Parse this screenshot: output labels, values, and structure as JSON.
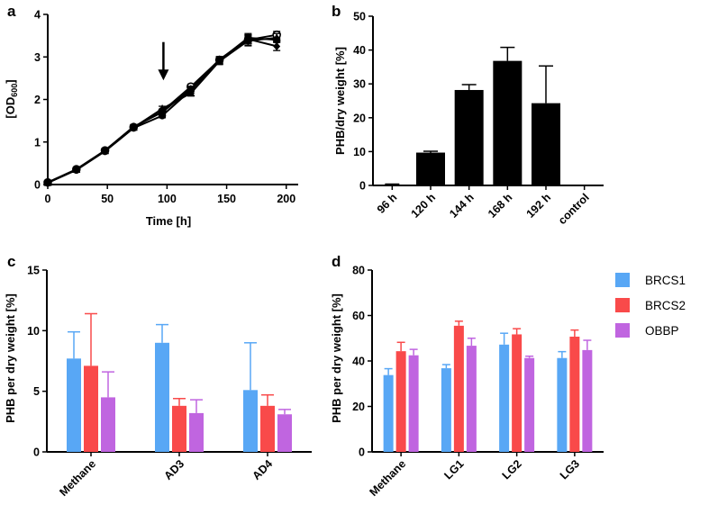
{
  "figure": {
    "palette": {
      "axis": "#000000",
      "black_bar": "#000000"
    },
    "legend": [
      {
        "label": "BRCS1",
        "color": "#58a7f5"
      },
      {
        "label": "BRCS2",
        "color": "#f94a4a"
      },
      {
        "label": "OBBP",
        "color": "#c065e0"
      }
    ]
  },
  "chart_data": [
    {
      "panel": "a",
      "type": "line",
      "title": "",
      "xlabel": "Time [h]",
      "ylabel_main": "[OD",
      "ylabel_sub": "600",
      "ylabel_close": "]",
      "xlim": [
        0,
        210
      ],
      "ylim": [
        0,
        4
      ],
      "xticks": [
        0,
        50,
        100,
        150,
        200
      ],
      "yticks": [
        0,
        1,
        2,
        3,
        4
      ],
      "annotation": {
        "type": "arrow",
        "x": 97,
        "y_from": 3.35,
        "y_to": 2.45
      },
      "series": [
        {
          "name": "series-1",
          "marker": "circle-open",
          "x": [
            0,
            24,
            48,
            72,
            96,
            120,
            144,
            168,
            192
          ],
          "y": [
            0.05,
            0.36,
            0.8,
            1.35,
            1.72,
            2.3,
            2.93,
            3.4,
            3.52
          ],
          "err": [
            0.03,
            0.04,
            0.05,
            0.05,
            0.05,
            0.06,
            0.07,
            0.12,
            0.08
          ]
        },
        {
          "name": "series-2",
          "marker": "circle-filled",
          "x": [
            0,
            24,
            48,
            72,
            96,
            120,
            144,
            168,
            192
          ],
          "y": [
            0.04,
            0.34,
            0.78,
            1.33,
            1.62,
            2.22,
            2.92,
            3.45,
            3.4
          ],
          "err": [
            0.03,
            0.04,
            0.05,
            0.05,
            0.05,
            0.07,
            0.07,
            0.1,
            0.06
          ]
        },
        {
          "name": "series-3",
          "marker": "triangle",
          "x": [
            0,
            24,
            48,
            72,
            96,
            120,
            144,
            168,
            192
          ],
          "y": [
            0.04,
            0.35,
            0.79,
            1.34,
            1.78,
            2.15,
            2.9,
            3.38,
            3.45
          ],
          "err": [
            0.03,
            0.04,
            0.05,
            0.05,
            0.06,
            0.07,
            0.08,
            0.12,
            0.1
          ]
        },
        {
          "name": "series-4",
          "marker": "diamond",
          "x": [
            0,
            24,
            48,
            72,
            96,
            120,
            144,
            168,
            192
          ],
          "y": [
            0.05,
            0.35,
            0.8,
            1.36,
            1.7,
            2.25,
            2.94,
            3.42,
            3.25
          ],
          "err": [
            0.03,
            0.04,
            0.05,
            0.05,
            0.05,
            0.06,
            0.07,
            0.1,
            0.1
          ]
        }
      ]
    },
    {
      "panel": "b",
      "type": "bar",
      "title": "",
      "xlabel": "",
      "ylabel": "PHB/dry weight [%]",
      "ylim": [
        0,
        50
      ],
      "yticks": [
        0,
        10,
        20,
        30,
        40,
        50
      ],
      "categories": [
        "96 h",
        "120 h",
        "144 h",
        "168 h",
        "192 h",
        "control"
      ],
      "values": [
        0.2,
        9.7,
        28.2,
        36.8,
        24.3,
        0
      ],
      "errors": [
        0.2,
        0.4,
        1.6,
        4.0,
        11.0,
        0
      ]
    },
    {
      "panel": "c",
      "type": "bar",
      "title": "",
      "xlabel": "",
      "ylabel": "PHB per dry weight [%]",
      "ylim": [
        0,
        15
      ],
      "yticks": [
        0,
        5,
        10,
        15
      ],
      "categories": [
        "Methane",
        "AD3",
        "AD4"
      ],
      "series": [
        {
          "name": "BRCS1",
          "values": [
            7.7,
            9.0,
            5.1
          ],
          "errors": [
            2.2,
            1.5,
            3.9
          ]
        },
        {
          "name": "BRCS2",
          "values": [
            7.1,
            3.8,
            3.8
          ],
          "errors": [
            4.3,
            0.6,
            0.9
          ]
        },
        {
          "name": "OBBP",
          "values": [
            4.5,
            3.2,
            3.1
          ],
          "errors": [
            2.1,
            1.1,
            0.4
          ]
        }
      ]
    },
    {
      "panel": "d",
      "type": "bar",
      "title": "",
      "xlabel": "",
      "ylabel": "PHB per dry weight [%]",
      "ylim": [
        0,
        80
      ],
      "yticks": [
        0,
        20,
        40,
        60,
        80
      ],
      "categories": [
        "Methane",
        "LG1",
        "LG2",
        "LG3"
      ],
      "series": [
        {
          "name": "BRCS1",
          "values": [
            33.8,
            36.8,
            47.2,
            41.3
          ],
          "errors": [
            2.8,
            1.6,
            5.0,
            2.8
          ]
        },
        {
          "name": "BRCS2",
          "values": [
            44.3,
            55.5,
            51.7,
            50.7
          ],
          "errors": [
            3.9,
            2.0,
            2.5,
            2.9
          ]
        },
        {
          "name": "OBBP",
          "values": [
            42.5,
            46.7,
            41.3,
            44.8
          ],
          "errors": [
            2.6,
            3.3,
            0.8,
            4.3
          ]
        }
      ]
    }
  ]
}
